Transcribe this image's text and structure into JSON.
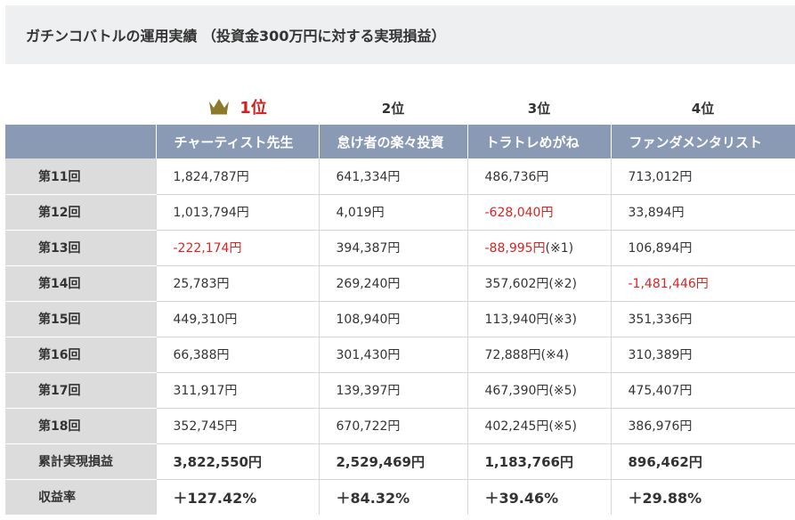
{
  "title": "ガチンコバトルの運用実績 （投資金300万円に対する実現損益）",
  "ranks": [
    "1位",
    "2位",
    "3位",
    "4位"
  ],
  "players": [
    "チャーティスト先生",
    "怠け者の楽々投資",
    "トラトレめがね",
    "ファンダメンタリスト"
  ],
  "colors": {
    "header_bg": "#8b9ab4",
    "label_bg": "#dcdcdc",
    "negative": "#dd2222",
    "crown": "#8a7a2a"
  },
  "rows": [
    {
      "label": "第11回",
      "cells": [
        "1,824,787円",
        "641,334円",
        "486,736円",
        "713,012円"
      ],
      "neg": [
        false,
        false,
        false,
        false
      ]
    },
    {
      "label": "第12回",
      "cells": [
        "1,013,794円",
        "4,019円",
        "-628,040円",
        "33,894円"
      ],
      "neg": [
        false,
        false,
        true,
        false
      ]
    },
    {
      "label": "第13回",
      "cells": [
        "-222,174円",
        "394,387円",
        "-88,995円",
        "106,894円"
      ],
      "notes": [
        "",
        "",
        "(※1)",
        ""
      ],
      "neg": [
        true,
        false,
        true,
        false
      ]
    },
    {
      "label": "第14回",
      "cells": [
        "25,783円",
        "269,240円",
        "357,602円",
        "-1,481,446円"
      ],
      "notes": [
        "",
        "",
        "(※2)",
        ""
      ],
      "neg": [
        false,
        false,
        false,
        true
      ]
    },
    {
      "label": "第15回",
      "cells": [
        "449,310円",
        "108,940円",
        "113,940円",
        "351,336円"
      ],
      "notes": [
        "",
        "",
        "(※3)",
        ""
      ],
      "neg": [
        false,
        false,
        false,
        false
      ]
    },
    {
      "label": "第16回",
      "cells": [
        "66,388円",
        "301,430円",
        "72,888円",
        "310,389円"
      ],
      "notes": [
        "",
        "",
        "(※4)",
        ""
      ],
      "neg": [
        false,
        false,
        false,
        false
      ]
    },
    {
      "label": "第17回",
      "cells": [
        "311,917円",
        "139,397円",
        "467,390円",
        "475,407円"
      ],
      "notes": [
        "",
        "",
        "(※5)",
        ""
      ],
      "neg": [
        false,
        false,
        false,
        false
      ]
    },
    {
      "label": "第18回",
      "cells": [
        "352,745円",
        "670,722円",
        "402,245円",
        "386,976円"
      ],
      "notes": [
        "",
        "",
        "(※5)",
        ""
      ],
      "neg": [
        false,
        false,
        false,
        false
      ]
    }
  ],
  "total": {
    "label": "累計実現損益",
    "cells": [
      "3,822,550円",
      "2,529,469円",
      "1,183,766円",
      "896,462円"
    ]
  },
  "rate": {
    "label": "収益率",
    "cells": [
      "＋127.42%",
      "＋84.32%",
      "＋39.46%",
      "＋29.88%"
    ]
  }
}
